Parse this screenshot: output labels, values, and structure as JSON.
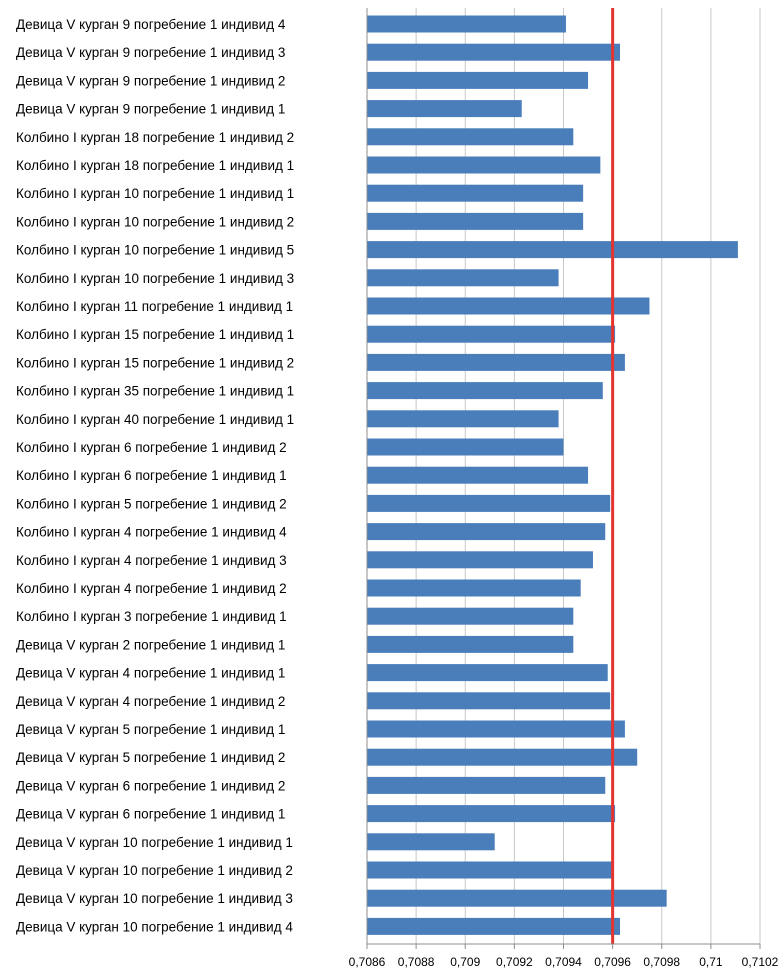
{
  "chart_data": {
    "type": "bar",
    "orientation": "horizontal",
    "title": "",
    "xlabel": "",
    "ylabel": "",
    "xlim": [
      0.7086,
      0.7102
    ],
    "grid": "vertical",
    "legend": "none",
    "bar_color": "#4a7ebb",
    "reference_line": {
      "value": 0.7096,
      "color": "#e3342f"
    },
    "x_ticks": [
      "0,7086",
      "0,7088",
      "0,709",
      "0,7092",
      "0,7094",
      "0,7096",
      "0,7098",
      "0,71",
      "0,7102"
    ],
    "x_tick_values": [
      0.7086,
      0.7088,
      0.709,
      0.7092,
      0.7094,
      0.7096,
      0.7098,
      0.71,
      0.7102
    ],
    "categories": [
      "Девица V курган 9 погребение 1 индивид 4",
      "Девица V курган 9 погребение 1 индивид 3",
      "Девица V курган 9 погребение 1 индивид 2",
      "Девица V курган 9 погребение 1 индивид 1",
      "Колбино I курган 18 погребение 1 индивид 2",
      "Колбино I курган 18 погребение 1 индивид 1",
      "Колбино I курган 10 погребение 1 индивид 1",
      "Колбино I курган 10 погребение 1 индивид 2",
      "Колбино I курган 10 погребение 1 индивид 5",
      "Колбино I курган 10 погребение 1 индивид 3",
      "Колбино I курган 11 погребение 1 индивид 1",
      "Колбино I курган 15 погребение 1 индивид 1",
      "Колбино I курган 15 погребение 1 индивид 2",
      "Колбино I курган 35 погребение 1 индивид 1",
      "Колбино I курган 40 погребение 1 индивид 1",
      "Колбино I курган 6 погребение 1 индивид 2",
      "Колбино I курган 6 погребение 1 индивид 1",
      "Колбино I курган 5 погребение 1 индивид 2",
      "Колбино I курган 4 погребение 1 индивид 4",
      "Колбино I курган 4 погребение 1 индивид 3",
      "Колбино I курган 4 погребение 1 индивид 2",
      "Колбино I курган 3 погребение 1 индивид 1",
      "Девица V курган 2 погребение 1 индивид 1",
      "Девица V курган 4 погребение 1 индивид 1",
      "Девица V курган 4 погребение 1 индивид 2",
      "Девица V курган 5 погребение 1 индивид 1",
      "Девица V курган 5 погребение 1 индивид 2",
      "Девица V курган 6 погребение 1 индивид 2",
      "Девица V курган 6 погребение 1 индивид 1",
      "Девица V курган 10 погребение 1 индивид 1",
      "Девица V курган 10 погребение 1 индивид 2",
      "Девица V курган 10 погребение 1 индивид 3",
      "Девица V курган 10 погребение 1 индивид 4"
    ],
    "values": [
      0.70941,
      0.70963,
      0.7095,
      0.70923,
      0.70944,
      0.70955,
      0.70948,
      0.70948,
      0.71011,
      0.70938,
      0.70975,
      0.70961,
      0.70965,
      0.70956,
      0.70938,
      0.7094,
      0.7095,
      0.70959,
      0.70957,
      0.70952,
      0.70947,
      0.70944,
      0.70944,
      0.70958,
      0.70959,
      0.70965,
      0.7097,
      0.70957,
      0.70961,
      0.70912,
      0.7096,
      0.70982,
      0.70963
    ]
  }
}
